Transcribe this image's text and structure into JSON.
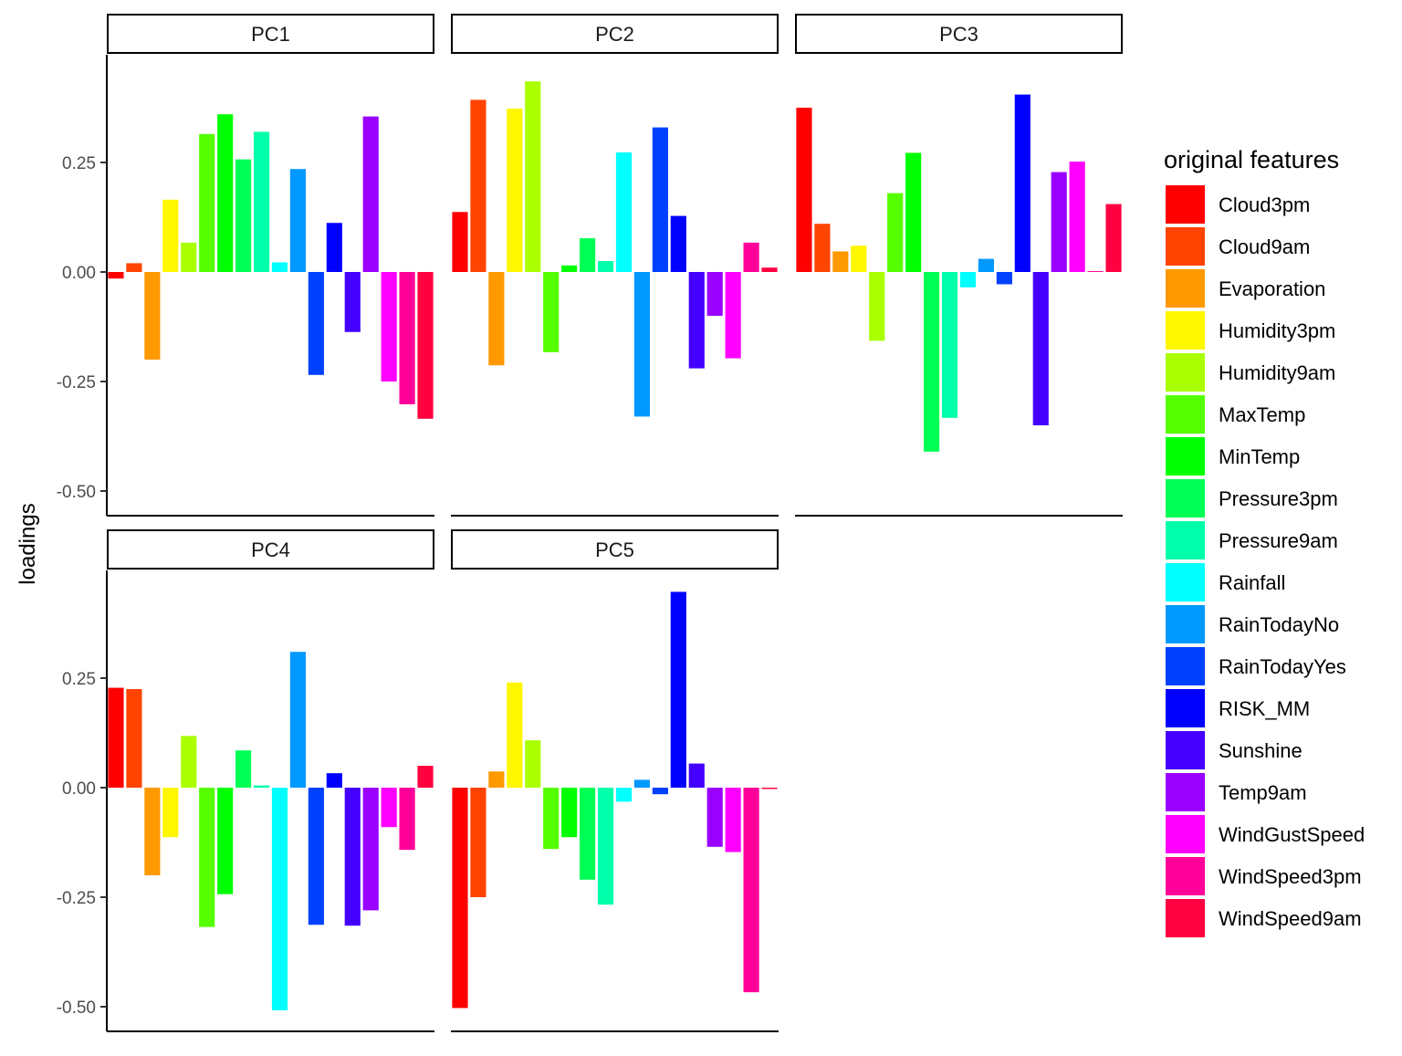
{
  "chart_data": {
    "type": "bar",
    "facet_by": "principal component",
    "ylabel": "loadings",
    "xlabel": "",
    "ylim": [
      -0.52,
      0.5
    ],
    "y_ticks": [
      0.25,
      0.0,
      -0.25,
      -0.5
    ],
    "y_tick_labels": [
      "0.25",
      "0.00",
      "-0.25",
      "-0.50"
    ],
    "grid": false,
    "legend": {
      "title": "original features",
      "position": "right"
    },
    "categories": [
      "Cloud3pm",
      "Cloud9am",
      "Evaporation",
      "Humidity3pm",
      "Humidity9am",
      "MaxTemp",
      "MinTemp",
      "Pressure3pm",
      "Pressure9am",
      "Rainfall",
      "RainTodayNo",
      "RainTodayYes",
      "RISK_MM",
      "Sunshine",
      "Temp9am",
      "WindGustSpeed",
      "WindSpeed3pm",
      "WindSpeed9am"
    ],
    "colors": [
      "#FF0000",
      "#FF4300",
      "#FF9900",
      "#FFF700",
      "#AAFF00",
      "#55FF00",
      "#00FF00",
      "#00FF55",
      "#00FFAA",
      "#00FFFF",
      "#0099FF",
      "#0040FF",
      "#0000FF",
      "#4400FF",
      "#9900FF",
      "#FF00FF",
      "#FF0099",
      "#FF0040"
    ],
    "panels": [
      {
        "label": "PC1",
        "values": [
          -0.015,
          0.02,
          -0.2,
          0.165,
          0.067,
          0.315,
          0.36,
          0.257,
          0.32,
          0.022,
          0.235,
          -0.235,
          0.112,
          -0.137,
          0.355,
          -0.25,
          -0.302,
          -0.335
        ]
      },
      {
        "label": "PC2",
        "values": [
          0.137,
          0.393,
          -0.213,
          0.373,
          0.435,
          -0.183,
          0.015,
          0.077,
          0.025,
          0.273,
          -0.33,
          0.33,
          0.128,
          -0.22,
          -0.1,
          -0.197,
          0.067,
          0.01
        ]
      },
      {
        "label": "PC3",
        "values": [
          0.375,
          0.11,
          0.047,
          0.06,
          -0.157,
          0.18,
          0.272,
          -0.41,
          -0.333,
          -0.035,
          0.03,
          -0.028,
          0.405,
          -0.35,
          0.228,
          0.252,
          0.002,
          0.155
        ]
      },
      {
        "label": "PC4",
        "values": [
          0.228,
          0.225,
          -0.2,
          -0.113,
          0.118,
          -0.318,
          -0.243,
          0.085,
          0.005,
          -0.508,
          0.31,
          -0.313,
          0.033,
          -0.315,
          -0.28,
          -0.09,
          -0.142,
          0.05
        ]
      },
      {
        "label": "PC5",
        "values": [
          -0.503,
          -0.25,
          0.037,
          0.24,
          0.108,
          -0.14,
          -0.113,
          -0.21,
          -0.267,
          -0.032,
          0.018,
          -0.015,
          0.447,
          0.055,
          -0.135,
          -0.147,
          -0.467,
          -0.003
        ]
      }
    ]
  }
}
